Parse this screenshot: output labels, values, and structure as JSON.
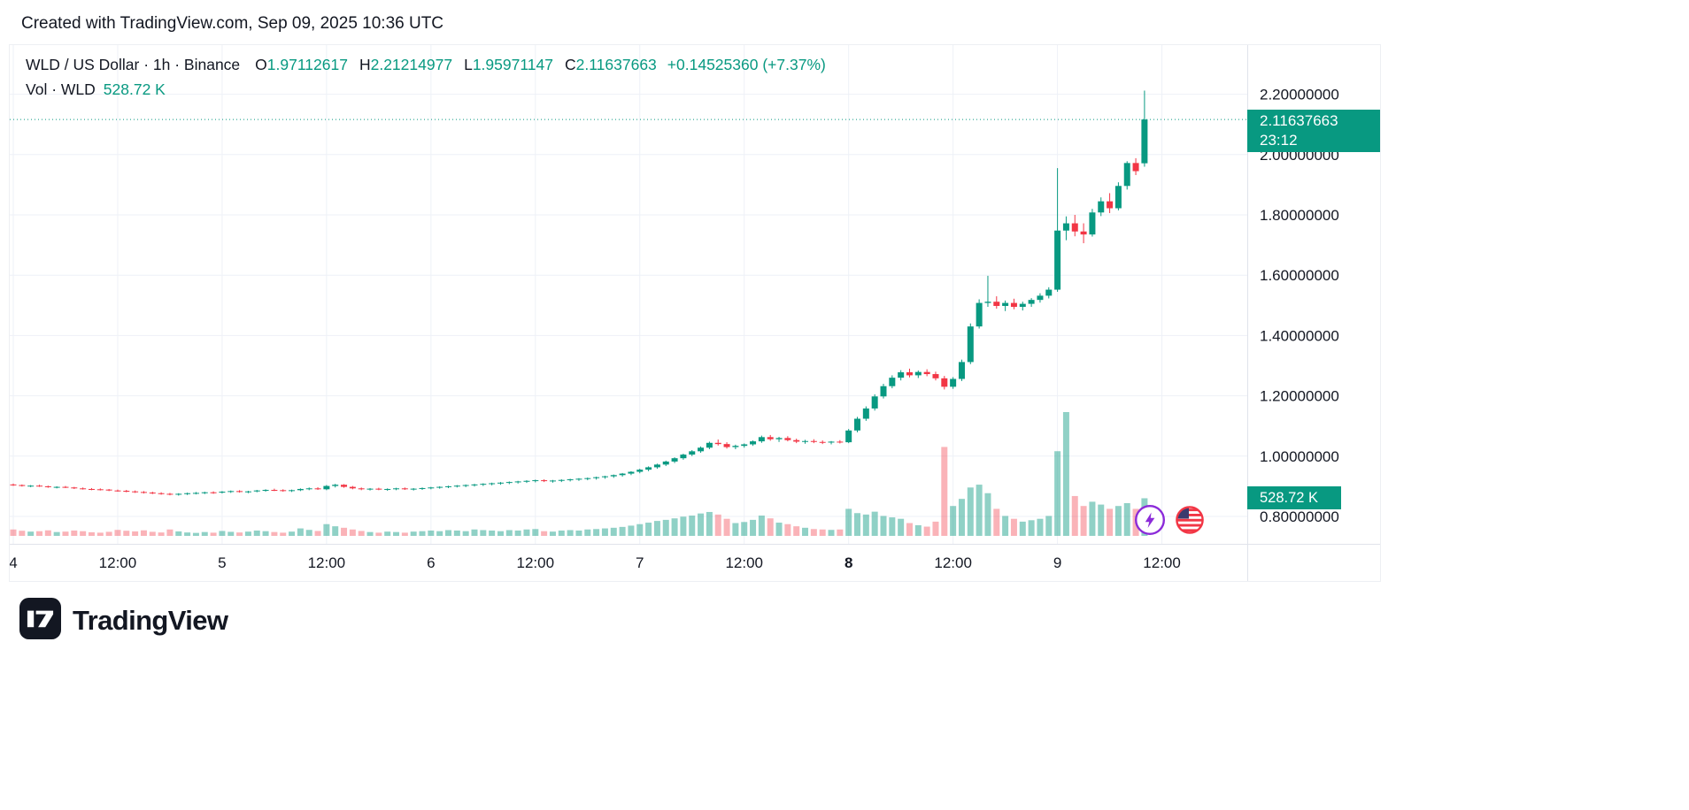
{
  "attribution": "Created with TradingView.com, Sep 09, 2025 10:36 UTC",
  "legend": {
    "symbol_title": "WLD / US Dollar · 1h · Binance",
    "o_label": "O",
    "o_value": "1.97112617",
    "h_label": "H",
    "h_value": "2.21214977",
    "l_label": "L",
    "l_value": "1.95971147",
    "c_label": "C",
    "c_value": "2.11637663",
    "change": "+0.14525360 (+7.37%)",
    "volume_label": "Vol · WLD",
    "volume_value": "528.72 K"
  },
  "price_label": {
    "price": "2.11637663",
    "countdown": "23:12"
  },
  "volume_badge": "528.72 K",
  "footer": {
    "logo_text": "TradingView"
  },
  "icons": {
    "boost": "lightning-boost-icon",
    "flag": "us-flag-icon"
  },
  "colors": {
    "up": "#089981",
    "down": "#F23645",
    "vol_up": "rgba(8,153,129,0.45)",
    "vol_down": "rgba(242,54,69,0.38)",
    "grid": "#EEF1F7",
    "border": "#E0E3EB",
    "axis_text": "#131722",
    "badge": "#089981",
    "boost_purple": "#8C2BD9",
    "flag_red": "#F23645",
    "flag_blue": "#3C3B6E"
  },
  "chart_data": {
    "type": "candlestick",
    "title": "WLD / US Dollar · 1h · Binance",
    "symbol": "WLD/USD",
    "interval": "1h",
    "exchange": "Binance",
    "last_close": 2.11637663,
    "last_candle": {
      "open": 1.97112617,
      "high": 2.21214977,
      "low": 1.95971147,
      "close": 2.11637663,
      "volume_k": 528.72
    },
    "price_ticks": [
      {
        "label": "2.20000000",
        "value": 2.2
      },
      {
        "label": "2.00000000",
        "value": 2.0
      },
      {
        "label": "1.80000000",
        "value": 1.8
      },
      {
        "label": "1.60000000",
        "value": 1.6
      },
      {
        "label": "1.40000000",
        "value": 1.4
      },
      {
        "label": "1.20000000",
        "value": 1.2
      },
      {
        "label": "1.00000000",
        "value": 1.0
      },
      {
        "label": "0.80000000",
        "value": 0.8
      }
    ],
    "time_ticks": [
      {
        "label": "4",
        "hour": 0,
        "bold": false
      },
      {
        "label": "12:00",
        "hour": 12,
        "bold": false
      },
      {
        "label": "5",
        "hour": 24,
        "bold": false
      },
      {
        "label": "12:00",
        "hour": 36,
        "bold": false
      },
      {
        "label": "6",
        "hour": 48,
        "bold": false
      },
      {
        "label": "12:00",
        "hour": 60,
        "bold": false
      },
      {
        "label": "7",
        "hour": 72,
        "bold": false
      },
      {
        "label": "12:00",
        "hour": 84,
        "bold": false
      },
      {
        "label": "8",
        "hour": 96,
        "bold": true
      },
      {
        "label": "12:00",
        "hour": 108,
        "bold": false
      },
      {
        "label": "9",
        "hour": 120,
        "bold": false
      },
      {
        "label": "12:00",
        "hour": 132,
        "bold": false
      }
    ],
    "candles_format": [
      "open",
      "high",
      "low",
      "close",
      "volume_k"
    ],
    "candles": [
      [
        0.906,
        0.909,
        0.901,
        0.904,
        90
      ],
      [
        0.904,
        0.906,
        0.899,
        0.901,
        72
      ],
      [
        0.901,
        0.904,
        0.897,
        0.902,
        60
      ],
      [
        0.902,
        0.905,
        0.898,
        0.9,
        66
      ],
      [
        0.9,
        0.902,
        0.895,
        0.897,
        78
      ],
      [
        0.897,
        0.9,
        0.893,
        0.898,
        54
      ],
      [
        0.898,
        0.901,
        0.894,
        0.896,
        60
      ],
      [
        0.896,
        0.898,
        0.891,
        0.893,
        75
      ],
      [
        0.893,
        0.896,
        0.889,
        0.891,
        66
      ],
      [
        0.891,
        0.894,
        0.887,
        0.89,
        51
      ],
      [
        0.89,
        0.893,
        0.886,
        0.889,
        45
      ],
      [
        0.889,
        0.891,
        0.884,
        0.886,
        57
      ],
      [
        0.886,
        0.889,
        0.882,
        0.885,
        84
      ],
      [
        0.885,
        0.888,
        0.88,
        0.883,
        72
      ],
      [
        0.883,
        0.886,
        0.878,
        0.881,
        63
      ],
      [
        0.881,
        0.884,
        0.876,
        0.879,
        78
      ],
      [
        0.879,
        0.882,
        0.874,
        0.877,
        57
      ],
      [
        0.877,
        0.88,
        0.872,
        0.875,
        48
      ],
      [
        0.875,
        0.878,
        0.87,
        0.873,
        90
      ],
      [
        0.873,
        0.877,
        0.869,
        0.875,
        63
      ],
      [
        0.875,
        0.879,
        0.871,
        0.877,
        48
      ],
      [
        0.877,
        0.881,
        0.873,
        0.878,
        42
      ],
      [
        0.878,
        0.882,
        0.874,
        0.88,
        54
      ],
      [
        0.88,
        0.883,
        0.875,
        0.879,
        45
      ],
      [
        0.879,
        0.884,
        0.876,
        0.882,
        69
      ],
      [
        0.882,
        0.886,
        0.878,
        0.884,
        57
      ],
      [
        0.884,
        0.887,
        0.879,
        0.881,
        48
      ],
      [
        0.881,
        0.885,
        0.877,
        0.883,
        60
      ],
      [
        0.883,
        0.888,
        0.88,
        0.886,
        75
      ],
      [
        0.886,
        0.89,
        0.882,
        0.888,
        66
      ],
      [
        0.888,
        0.892,
        0.884,
        0.887,
        54
      ],
      [
        0.887,
        0.89,
        0.882,
        0.885,
        45
      ],
      [
        0.885,
        0.889,
        0.881,
        0.887,
        60
      ],
      [
        0.887,
        0.893,
        0.884,
        0.891,
        105
      ],
      [
        0.891,
        0.896,
        0.887,
        0.893,
        84
      ],
      [
        0.893,
        0.897,
        0.888,
        0.89,
        69
      ],
      [
        0.89,
        0.904,
        0.887,
        0.901,
        165
      ],
      [
        0.901,
        0.908,
        0.896,
        0.905,
        135
      ],
      [
        0.905,
        0.907,
        0.895,
        0.898,
        114
      ],
      [
        0.898,
        0.901,
        0.89,
        0.893,
        90
      ],
      [
        0.893,
        0.896,
        0.887,
        0.89,
        69
      ],
      [
        0.89,
        0.894,
        0.886,
        0.892,
        54
      ],
      [
        0.892,
        0.895,
        0.887,
        0.889,
        45
      ],
      [
        0.889,
        0.893,
        0.885,
        0.891,
        60
      ],
      [
        0.891,
        0.895,
        0.887,
        0.893,
        54
      ],
      [
        0.893,
        0.896,
        0.888,
        0.89,
        45
      ],
      [
        0.89,
        0.894,
        0.886,
        0.892,
        60
      ],
      [
        0.892,
        0.896,
        0.888,
        0.894,
        66
      ],
      [
        0.894,
        0.898,
        0.89,
        0.896,
        75
      ],
      [
        0.896,
        0.9,
        0.892,
        0.898,
        66
      ],
      [
        0.898,
        0.902,
        0.894,
        0.9,
        81
      ],
      [
        0.9,
        0.904,
        0.896,
        0.902,
        75
      ],
      [
        0.902,
        0.906,
        0.897,
        0.904,
        66
      ],
      [
        0.904,
        0.908,
        0.899,
        0.906,
        90
      ],
      [
        0.906,
        0.91,
        0.901,
        0.908,
        81
      ],
      [
        0.908,
        0.912,
        0.903,
        0.91,
        75
      ],
      [
        0.91,
        0.914,
        0.905,
        0.912,
        66
      ],
      [
        0.912,
        0.916,
        0.907,
        0.914,
        81
      ],
      [
        0.914,
        0.918,
        0.909,
        0.916,
        75
      ],
      [
        0.916,
        0.92,
        0.911,
        0.918,
        90
      ],
      [
        0.918,
        0.922,
        0.913,
        0.92,
        96
      ],
      [
        0.92,
        0.923,
        0.914,
        0.917,
        66
      ],
      [
        0.917,
        0.921,
        0.912,
        0.919,
        60
      ],
      [
        0.919,
        0.923,
        0.914,
        0.921,
        75
      ],
      [
        0.921,
        0.925,
        0.916,
        0.923,
        81
      ],
      [
        0.923,
        0.927,
        0.918,
        0.925,
        75
      ],
      [
        0.925,
        0.929,
        0.92,
        0.927,
        90
      ],
      [
        0.927,
        0.932,
        0.922,
        0.93,
        96
      ],
      [
        0.93,
        0.935,
        0.925,
        0.933,
        105
      ],
      [
        0.933,
        0.939,
        0.928,
        0.937,
        114
      ],
      [
        0.937,
        0.944,
        0.932,
        0.942,
        126
      ],
      [
        0.942,
        0.95,
        0.937,
        0.948,
        144
      ],
      [
        0.948,
        0.958,
        0.943,
        0.955,
        165
      ],
      [
        0.955,
        0.966,
        0.95,
        0.963,
        186
      ],
      [
        0.963,
        0.975,
        0.958,
        0.972,
        210
      ],
      [
        0.972,
        0.985,
        0.967,
        0.982,
        225
      ],
      [
        0.982,
        0.996,
        0.977,
        0.993,
        246
      ],
      [
        0.993,
        1.008,
        0.988,
        1.005,
        270
      ],
      [
        1.005,
        1.02,
        1.0,
        1.016,
        285
      ],
      [
        1.016,
        1.032,
        1.011,
        1.028,
        315
      ],
      [
        1.028,
        1.048,
        1.023,
        1.044,
        336
      ],
      [
        1.044,
        1.055,
        1.035,
        1.04,
        300
      ],
      [
        1.04,
        1.046,
        1.025,
        1.03,
        240
      ],
      [
        1.03,
        1.038,
        1.023,
        1.034,
        180
      ],
      [
        1.034,
        1.042,
        1.028,
        1.039,
        195
      ],
      [
        1.039,
        1.052,
        1.034,
        1.049,
        225
      ],
      [
        1.049,
        1.068,
        1.044,
        1.063,
        285
      ],
      [
        1.063,
        1.07,
        1.051,
        1.056,
        246
      ],
      [
        1.056,
        1.064,
        1.047,
        1.06,
        186
      ],
      [
        1.06,
        1.066,
        1.049,
        1.053,
        165
      ],
      [
        1.053,
        1.058,
        1.043,
        1.048,
        135
      ],
      [
        1.048,
        1.054,
        1.041,
        1.05,
        114
      ],
      [
        1.05,
        1.056,
        1.043,
        1.047,
        96
      ],
      [
        1.047,
        1.052,
        1.04,
        1.045,
        90
      ],
      [
        1.045,
        1.05,
        1.039,
        1.048,
        84
      ],
      [
        1.048,
        1.053,
        1.042,
        1.046,
        90
      ],
      [
        1.046,
        1.09,
        1.043,
        1.085,
        380
      ],
      [
        1.085,
        1.13,
        1.079,
        1.124,
        320
      ],
      [
        1.124,
        1.165,
        1.117,
        1.158,
        300
      ],
      [
        1.158,
        1.205,
        1.151,
        1.198,
        340
      ],
      [
        1.198,
        1.24,
        1.191,
        1.232,
        280
      ],
      [
        1.232,
        1.268,
        1.225,
        1.26,
        260
      ],
      [
        1.26,
        1.285,
        1.251,
        1.278,
        240
      ],
      [
        1.278,
        1.29,
        1.261,
        1.268,
        180
      ],
      [
        1.268,
        1.284,
        1.259,
        1.279,
        150
      ],
      [
        1.279,
        1.288,
        1.265,
        1.272,
        130
      ],
      [
        1.272,
        1.28,
        1.251,
        1.258,
        200
      ],
      [
        1.258,
        1.266,
        1.221,
        1.23,
        1250
      ],
      [
        1.23,
        1.262,
        1.223,
        1.256,
        420
      ],
      [
        1.256,
        1.32,
        1.249,
        1.312,
        520
      ],
      [
        1.312,
        1.44,
        1.305,
        1.43,
        680
      ],
      [
        1.43,
        1.52,
        1.423,
        1.508,
        720
      ],
      [
        1.508,
        1.598,
        1.495,
        1.512,
        600
      ],
      [
        1.512,
        1.53,
        1.489,
        1.498,
        380
      ],
      [
        1.498,
        1.516,
        1.481,
        1.508,
        280
      ],
      [
        1.508,
        1.522,
        1.487,
        1.495,
        240
      ],
      [
        1.495,
        1.512,
        1.483,
        1.505,
        200
      ],
      [
        1.505,
        1.524,
        1.495,
        1.518,
        220
      ],
      [
        1.518,
        1.54,
        1.509,
        1.532,
        240
      ],
      [
        1.532,
        1.56,
        1.523,
        1.552,
        280
      ],
      [
        1.552,
        1.955,
        1.545,
        1.748,
        1190
      ],
      [
        1.748,
        1.795,
        1.716,
        1.772,
        1740
      ],
      [
        1.772,
        1.8,
        1.729,
        1.745,
        560
      ],
      [
        1.745,
        1.772,
        1.706,
        1.735,
        420
      ],
      [
        1.735,
        1.82,
        1.728,
        1.808,
        480
      ],
      [
        1.808,
        1.858,
        1.796,
        1.845,
        440
      ],
      [
        1.845,
        1.872,
        1.806,
        1.822,
        380
      ],
      [
        1.822,
        1.908,
        1.815,
        1.896,
        420
      ],
      [
        1.896,
        1.978,
        1.884,
        1.972,
        460
      ],
      [
        1.972,
        1.988,
        1.932,
        1.945,
        380
      ],
      [
        1.97112617,
        2.21214977,
        1.95971147,
        2.11637663,
        528.72
      ]
    ]
  }
}
